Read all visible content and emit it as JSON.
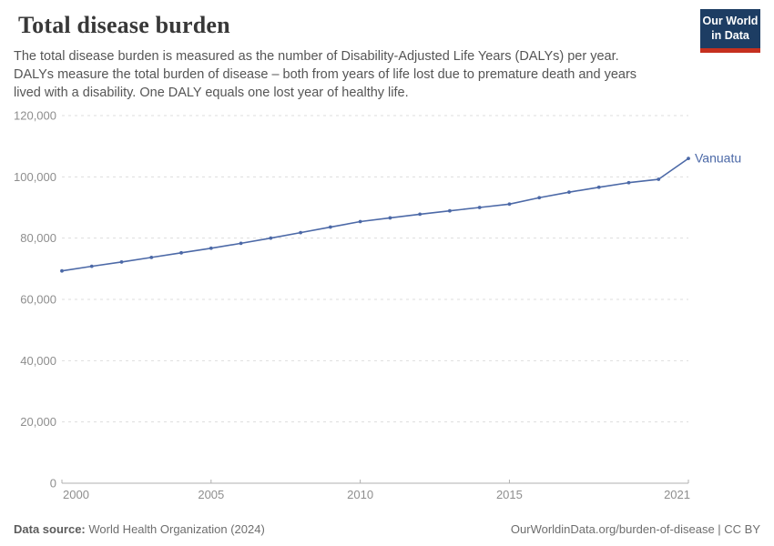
{
  "header": {
    "title": "Total disease burden",
    "subtitle_lines": [
      "The total disease burden is measured as the number of Disability-Adjusted Life Years (DALYs) per year.",
      "DALYs measure the total burden of disease – both from years of life lost due to premature death and years",
      "lived with a disability. One DALY equals one lost year of healthy life."
    ],
    "logo": {
      "line1": "Our World",
      "line2": "in Data"
    }
  },
  "chart_data": {
    "type": "line",
    "title": "Total disease burden",
    "entity": "Vanuatu",
    "x": [
      2000,
      2001,
      2002,
      2003,
      2004,
      2005,
      2006,
      2007,
      2008,
      2009,
      2010,
      2011,
      2012,
      2013,
      2014,
      2015,
      2016,
      2017,
      2018,
      2019,
      2020,
      2021
    ],
    "series": [
      {
        "name": "Vanuatu",
        "color": "#4c69a7",
        "values": [
          69300,
          70800,
          72200,
          73700,
          75200,
          76700,
          78300,
          80000,
          81800,
          83600,
          85400,
          86600,
          87800,
          88900,
          90000,
          91100,
          93200,
          95000,
          96600,
          98100,
          99200,
          106000
        ]
      }
    ],
    "ylabel": "",
    "xlabel": "",
    "ylim": [
      0,
      120000
    ],
    "xlim": [
      2000,
      2021
    ],
    "grid": "dashed-horizontal",
    "legend_position": "end-of-line-label",
    "y_ticks": [
      {
        "value": 0,
        "label": "0"
      },
      {
        "value": 20000,
        "label": "20,000"
      },
      {
        "value": 40000,
        "label": "40,000"
      },
      {
        "value": 60000,
        "label": "60,000"
      },
      {
        "value": 80000,
        "label": "80,000"
      },
      {
        "value": 100000,
        "label": "100,000"
      },
      {
        "value": 120000,
        "label": "120,000"
      }
    ],
    "x_ticks": [
      {
        "value": 2000,
        "label": "2000"
      },
      {
        "value": 2005,
        "label": "2005"
      },
      {
        "value": 2010,
        "label": "2010"
      },
      {
        "value": 2015,
        "label": "2015"
      },
      {
        "value": 2021,
        "label": "2021"
      }
    ]
  },
  "colors": {
    "line": "#4c69a7",
    "end_label": "#4c69a7",
    "grid": "#dddddd",
    "axis": "#b0b0b0",
    "tick_label": "#8e8e8e",
    "logo_bg": "#1d3d63",
    "logo_stripe": "#c5301f"
  },
  "footer": {
    "source_label": "Data source:",
    "source_value": " World Health Organization (2024)",
    "link_text": "OurWorldinData.org/burden-of-disease | CC BY"
  }
}
